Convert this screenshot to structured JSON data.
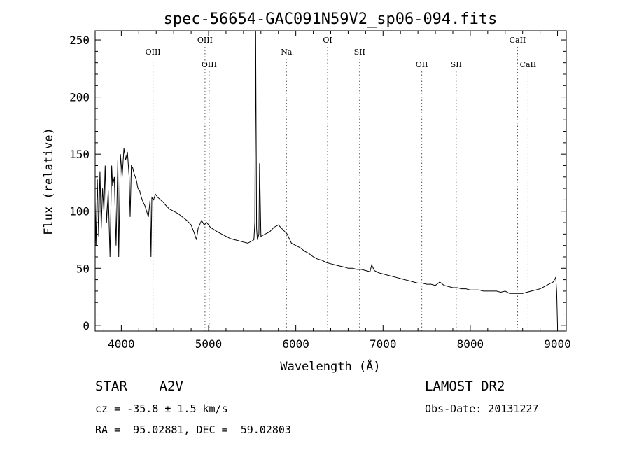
{
  "chart_data": {
    "type": "line",
    "title": "spec-56654-GAC091N59V2_sp06-094.fits",
    "xlabel": "Wavelength (Å)",
    "ylabel": "Flux (relative)",
    "xlim": [
      3700,
      9100
    ],
    "ylim": [
      -5,
      258
    ],
    "xticks": [
      4000,
      5000,
      6000,
      7000,
      8000,
      9000
    ],
    "yticks": [
      0,
      50,
      100,
      150,
      200,
      250
    ],
    "grid": false,
    "lines": [
      {
        "label": "OIII",
        "x": 4363,
        "row": 1
      },
      {
        "label": "OIII",
        "x": 4959,
        "row": 0
      },
      {
        "label": "OIII",
        "x": 5007,
        "row": 2
      },
      {
        "label": "Na",
        "x": 5893,
        "row": 1
      },
      {
        "label": "OI",
        "x": 6364,
        "row": 0
      },
      {
        "label": "SII",
        "x": 6731,
        "row": 1
      },
      {
        "label": "OII",
        "x": 7444,
        "row": 2
      },
      {
        "label": "SII",
        "x": 7839,
        "row": 2
      },
      {
        "label": "CaII",
        "x": 8542,
        "row": 0
      },
      {
        "label": "CaII",
        "x": 8662,
        "row": 2
      }
    ],
    "series": [
      {
        "x": [
          3700,
          3710,
          3725,
          3740,
          3755,
          3770,
          3785,
          3800,
          3815,
          3830,
          3850,
          3870,
          3889,
          3900,
          3920,
          3940,
          3960,
          3970,
          3990,
          4010,
          4030,
          4050,
          4070,
          4090,
          4101,
          4115,
          4130,
          4150,
          4170,
          4190,
          4210,
          4230,
          4250,
          4270,
          4290,
          4310,
          4330,
          4340,
          4350,
          4370,
          4390,
          4420,
          4450,
          4480,
          4500,
          4550,
          4600,
          4650,
          4700,
          4750,
          4800,
          4840,
          4861,
          4880,
          4920,
          4950,
          4980,
          5020,
          5060,
          5100,
          5150,
          5200,
          5250,
          5300,
          5350,
          5400,
          5450,
          5500,
          5520,
          5530,
          5540,
          5550,
          5560,
          5570,
          5577,
          5585,
          5600,
          5650,
          5700,
          5750,
          5800,
          5850,
          5900,
          5950,
          6000,
          6050,
          6100,
          6150,
          6200,
          6250,
          6300,
          6350,
          6400,
          6450,
          6500,
          6563,
          6600,
          6650,
          6700,
          6750,
          6800,
          6850,
          6870,
          6900,
          6950,
          7000,
          7050,
          7100,
          7150,
          7200,
          7250,
          7300,
          7350,
          7400,
          7450,
          7500,
          7550,
          7600,
          7650,
          7700,
          7750,
          7800,
          7850,
          7900,
          7950,
          8000,
          8050,
          8100,
          8150,
          8200,
          8250,
          8300,
          8350,
          8400,
          8450,
          8500,
          8550,
          8600,
          8650,
          8700,
          8750,
          8800,
          8850,
          8900,
          8950,
          8980,
          8990,
          9000
        ],
        "y": [
          110,
          70,
          128,
          78,
          135,
          85,
          120,
          100,
          140,
          90,
          118,
          60,
          140,
          122,
          130,
          70,
          145,
          60,
          150,
          130,
          155,
          145,
          152,
          130,
          95,
          140,
          138,
          132,
          128,
          120,
          118,
          112,
          108,
          105,
          100,
          95,
          110,
          60,
          112,
          110,
          115,
          112,
          110,
          108,
          106,
          102,
          100,
          98,
          95,
          92,
          88,
          80,
          75,
          85,
          92,
          88,
          90,
          86,
          84,
          82,
          80,
          78,
          76,
          75,
          74,
          73,
          72,
          74,
          75,
          90,
          262,
          85,
          75,
          78,
          80,
          142,
          78,
          80,
          82,
          86,
          88,
          84,
          80,
          72,
          70,
          68,
          65,
          63,
          60,
          58,
          57,
          55,
          54,
          53,
          52,
          51,
          50,
          50,
          49,
          49,
          48,
          47,
          53,
          48,
          46,
          45,
          44,
          43,
          42,
          41,
          40,
          39,
          38,
          37,
          37,
          36,
          36,
          35,
          38,
          35,
          34,
          33,
          33,
          32,
          32,
          31,
          31,
          31,
          30,
          30,
          30,
          30,
          29,
          30,
          28,
          28,
          28,
          28,
          29,
          30,
          31,
          32,
          34,
          36,
          38,
          42,
          30,
          0
        ]
      }
    ]
  },
  "info": {
    "object": "STAR    A2V",
    "survey": "LAMOST DR2",
    "cz": "cz = -35.8 ± 1.5 km/s",
    "obs_date": "Obs-Date: 20131227",
    "coords": "RA =  95.02881, DEC =  59.02803"
  }
}
